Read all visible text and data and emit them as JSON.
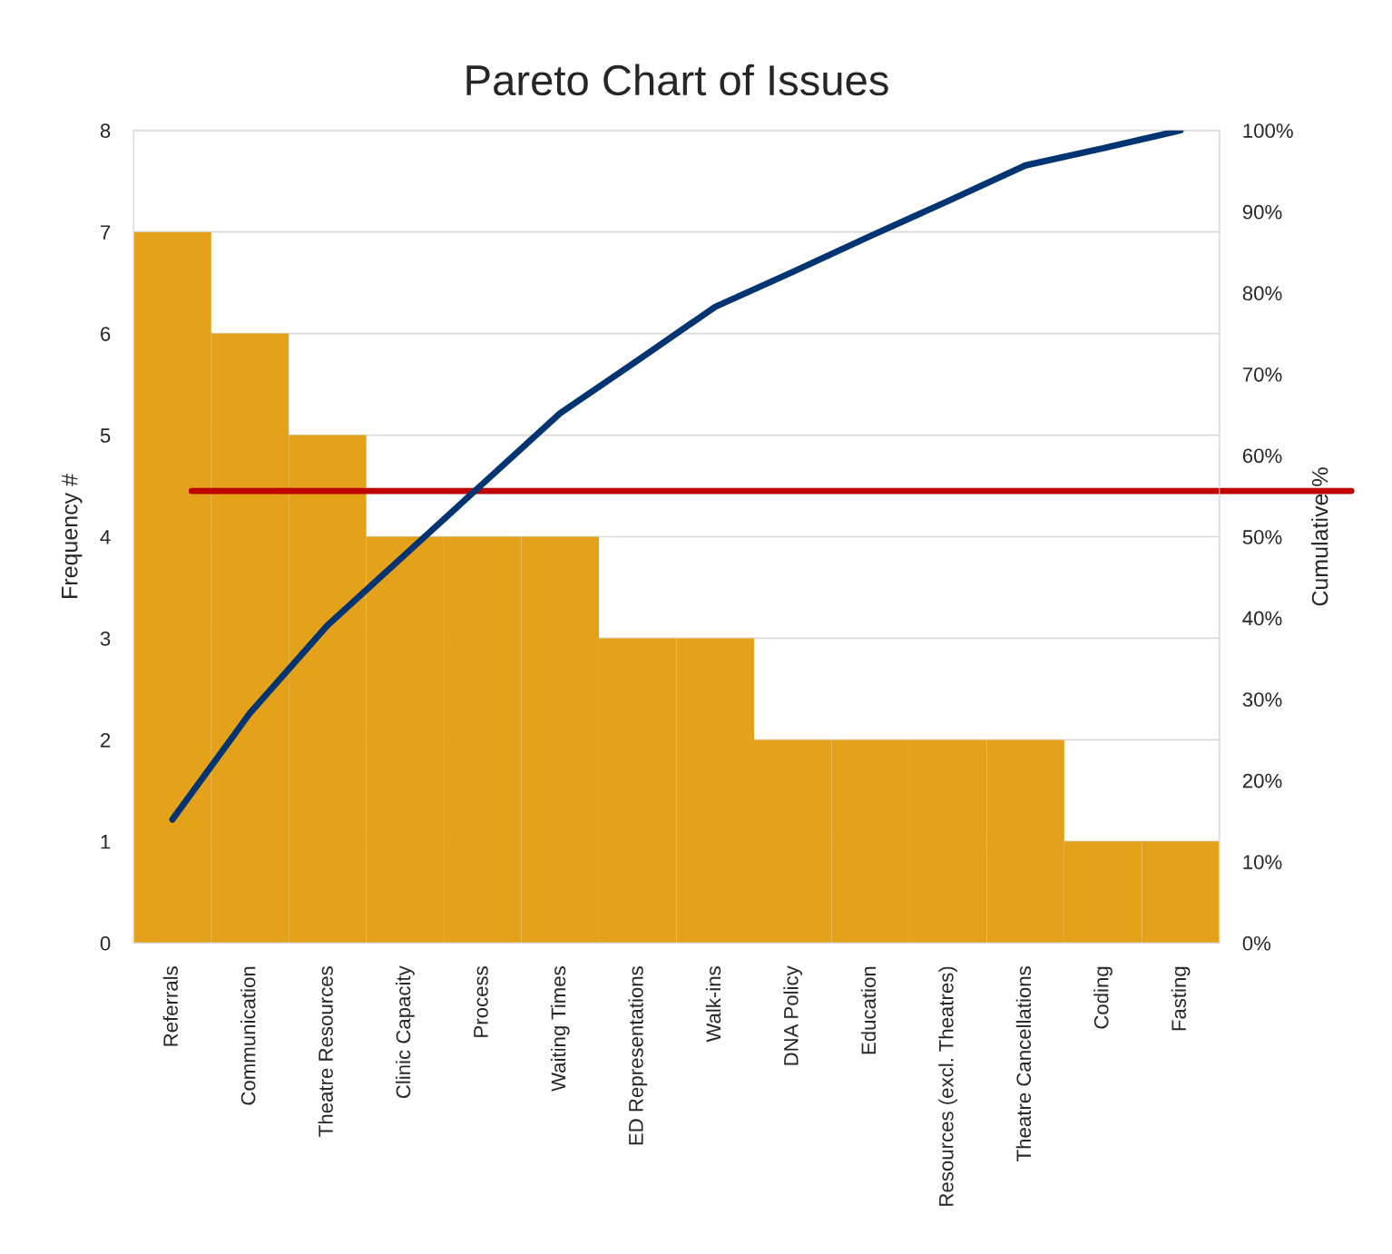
{
  "chart_data": {
    "type": "bar",
    "title": "Pareto Chart of Issues",
    "ylabel": "Frequency #",
    "y2label": "Cumulative %",
    "categories": [
      "Referrals",
      "Communication",
      "Theatre Resources",
      "Clinic Capacity",
      "Process",
      "Waiting Times",
      "ED Representations",
      "Walk-ins",
      "DNA Policy",
      "Education",
      "Resources (excl. Theatres)",
      "Theatre Cancellations",
      "Coding",
      "Fasting"
    ],
    "series": [
      {
        "color": "#e3a21a",
        "values": [
          7,
          6,
          5,
          4,
          4,
          4,
          3,
          3,
          2,
          2,
          2,
          2,
          1,
          1
        ]
      },
      {
        "type": "line",
        "axis": "y2",
        "color": "#003473",
        "values": [
          15.2,
          28.3,
          39.1,
          47.8,
          56.5,
          65.2,
          71.7,
          78.3,
          82.6,
          87.0,
          91.3,
          95.7,
          97.8,
          100
        ]
      }
    ],
    "ylim": [
      0,
      8
    ],
    "yticks": [
      0,
      1,
      2,
      3,
      4,
      5,
      6,
      7,
      8
    ],
    "y2lim": [
      0,
      100
    ],
    "y2ticks": [
      {
        "value": 0,
        "label": "0%"
      },
      {
        "value": 10,
        "label": "10%"
      },
      {
        "value": 20,
        "label": "20%"
      },
      {
        "value": 30,
        "label": "30%"
      },
      {
        "value": 40,
        "label": "40%"
      },
      {
        "value": 50,
        "label": "50%"
      },
      {
        "value": 60,
        "label": "60%"
      },
      {
        "value": 70,
        "label": "70%"
      },
      {
        "value": 80,
        "label": "80%"
      },
      {
        "value": 90,
        "label": "90%"
      },
      {
        "value": 100,
        "label": "100%"
      }
    ],
    "ref_lines": [
      {
        "axis": "y",
        "value": 4.45,
        "color": "#c00000"
      }
    ],
    "grid": "y",
    "line_style": "solid",
    "marker": "none",
    "legend": false
  }
}
